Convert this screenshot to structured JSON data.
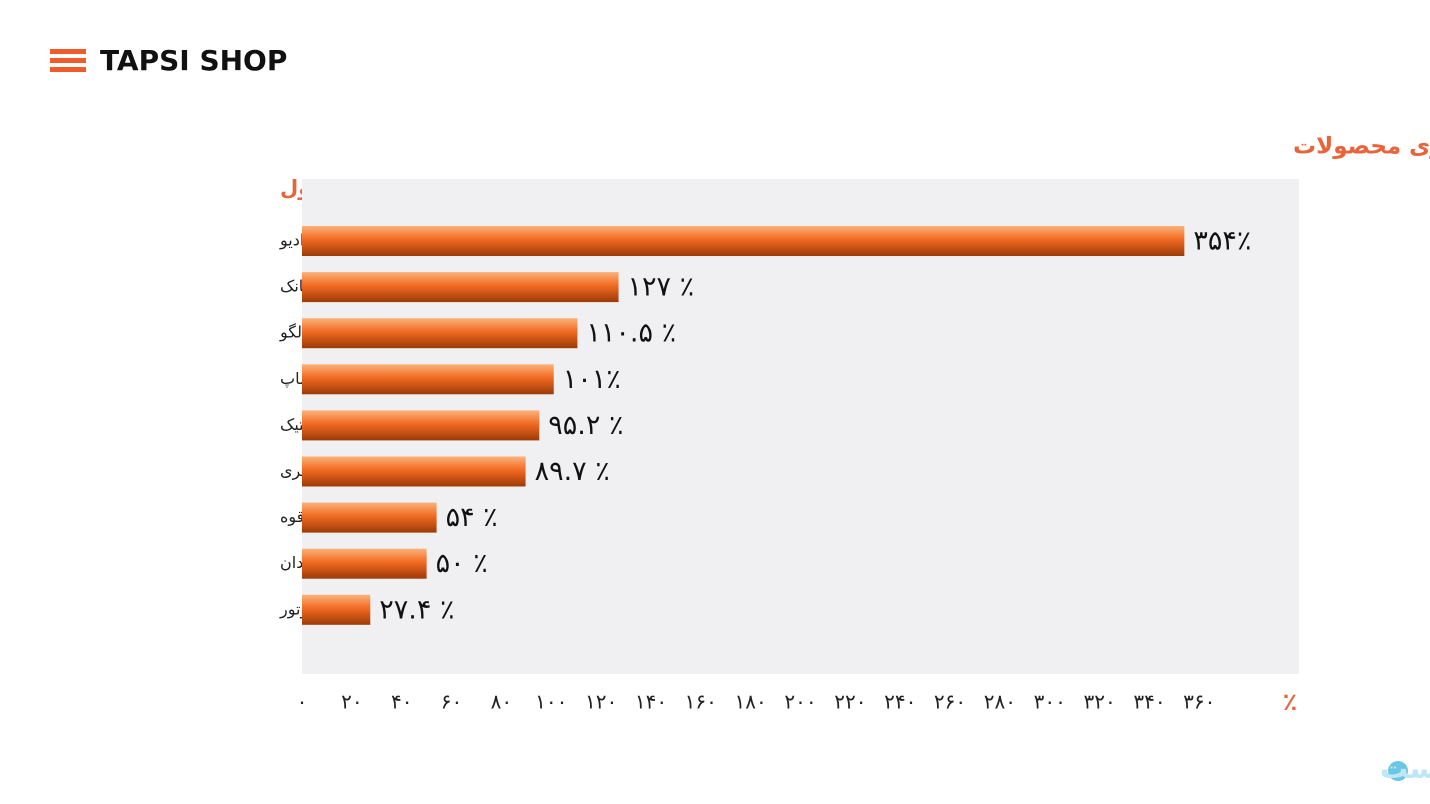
{
  "header": {
    "brand": "TAPSI SHOP"
  },
  "watermark": "پیوست",
  "chart_data": {
    "type": "hbar",
    "title": "افزایش جست‌وجوی محصولات",
    "ylabel": "نام محصول",
    "xlabel": "٪",
    "categories": [
      "رادیو",
      "پاوربانک",
      "لگو",
      "پت شاپ",
      "لاستیک",
      "بازی فکری",
      "چراغ قوه",
      "چمدان",
      "روغن موتور"
    ],
    "values": [
      354,
      127,
      110.5,
      101,
      95.2,
      89.7,
      54,
      50,
      27.4
    ],
    "value_labels": [
      "۳۵۴٪",
      "۱۲۷ ٪",
      "۱۱۰.۵ ٪",
      "۱۰۱٪",
      "۹۵.۲ ٪",
      "۸۹.۷ ٪",
      "۵۴ ٪",
      "۵۰ ٪",
      "۲۷.۴ ٪"
    ],
    "color": "#f26a21",
    "xlim": [
      0,
      400
    ],
    "xticks": [
      {
        "value": 0,
        "label": "۰"
      },
      {
        "value": 20,
        "label": "۲۰"
      },
      {
        "value": 40,
        "label": "۴۰"
      },
      {
        "value": 60,
        "label": "۶۰"
      },
      {
        "value": 80,
        "label": "۸۰"
      },
      {
        "value": 100,
        "label": "۱۰۰"
      },
      {
        "value": 120,
        "label": "۱۲۰"
      },
      {
        "value": 140,
        "label": "۱۴۰"
      },
      {
        "value": 160,
        "label": "۱۶۰"
      },
      {
        "value": 180,
        "label": "۱۸۰"
      },
      {
        "value": 200,
        "label": "۲۰۰"
      },
      {
        "value": 220,
        "label": "۲۲۰"
      },
      {
        "value": 240,
        "label": "۲۴۰"
      },
      {
        "value": 260,
        "label": "۲۶۰"
      },
      {
        "value": 280,
        "label": "۲۸۰"
      },
      {
        "value": 300,
        "label": "۳۰۰"
      },
      {
        "value": 320,
        "label": "۳۲۰"
      },
      {
        "value": 340,
        "label": "۳۴۰"
      },
      {
        "value": 360,
        "label": "۳۶۰"
      }
    ],
    "grid": false
  }
}
